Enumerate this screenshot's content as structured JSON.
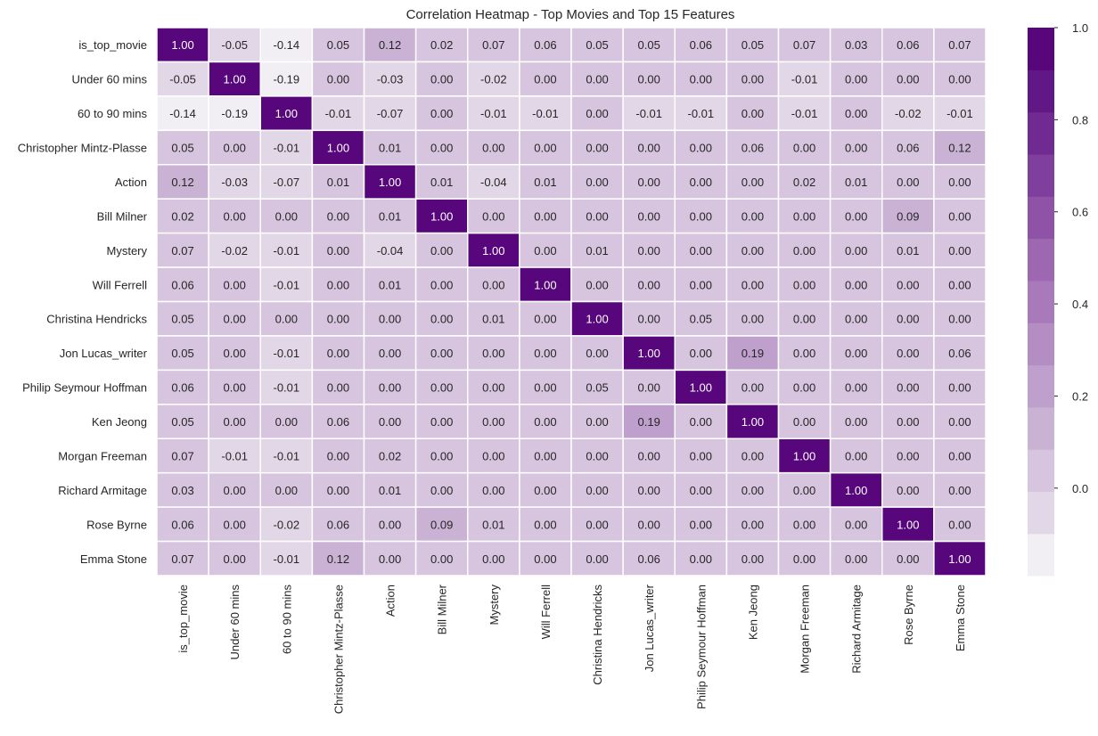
{
  "chart_data": {
    "type": "heatmap",
    "title": "Correlation Heatmap - Top Movies and Top 15 Features",
    "labels": [
      "is_top_movie",
      "Under 60 mins",
      "60 to 90 mins",
      "Christopher Mintz-Plasse",
      "Action",
      "Bill Milner",
      "Mystery",
      "Will Ferrell",
      "Christina Hendricks",
      "Jon Lucas_writer",
      "Philip Seymour Hoffman",
      "Ken Jeong",
      "Morgan Freeman",
      "Richard Armitage",
      "Rose Byrne",
      "Emma Stone"
    ],
    "matrix": [
      [
        1.0,
        -0.05,
        -0.14,
        0.05,
        0.12,
        0.02,
        0.07,
        0.06,
        0.05,
        0.05,
        0.06,
        0.05,
        0.07,
        0.03,
        0.06,
        0.07
      ],
      [
        -0.05,
        1.0,
        -0.19,
        -0.0,
        -0.03,
        -0.0,
        -0.02,
        -0.0,
        -0.0,
        -0.0,
        -0.0,
        -0.0,
        -0.01,
        0.0,
        -0.0,
        -0.0
      ],
      [
        -0.14,
        -0.19,
        1.0,
        -0.01,
        -0.07,
        -0.0,
        -0.01,
        -0.01,
        -0.0,
        -0.01,
        -0.01,
        -0.0,
        -0.01,
        -0.0,
        -0.02,
        -0.01
      ],
      [
        0.05,
        -0.0,
        -0.01,
        1.0,
        0.01,
        -0.0,
        -0.0,
        -0.0,
        -0.0,
        -0.0,
        -0.0,
        0.06,
        -0.0,
        -0.0,
        0.06,
        0.12
      ],
      [
        0.12,
        -0.03,
        -0.07,
        0.01,
        1.0,
        0.01,
        -0.04,
        0.01,
        -0.0,
        -0.0,
        0.0,
        0.0,
        0.02,
        0.01,
        0.0,
        0.0
      ],
      [
        0.02,
        -0.0,
        -0.0,
        -0.0,
        0.01,
        1.0,
        0.0,
        -0.0,
        -0.0,
        -0.0,
        -0.0,
        -0.0,
        -0.0,
        -0.0,
        0.09,
        -0.0
      ],
      [
        0.07,
        -0.02,
        -0.01,
        -0.0,
        -0.04,
        0.0,
        1.0,
        -0.0,
        0.01,
        0.0,
        0.0,
        -0.0,
        -0.0,
        -0.0,
        0.01,
        -0.0
      ],
      [
        0.06,
        -0.0,
        -0.01,
        -0.0,
        0.01,
        -0.0,
        -0.0,
        1.0,
        -0.0,
        -0.0,
        -0.0,
        -0.0,
        -0.0,
        -0.0,
        -0.0,
        -0.0
      ],
      [
        0.05,
        -0.0,
        -0.0,
        -0.0,
        -0.0,
        -0.0,
        0.01,
        -0.0,
        1.0,
        -0.0,
        0.05,
        -0.0,
        -0.0,
        -0.0,
        -0.0,
        -0.0
      ],
      [
        0.05,
        -0.0,
        -0.01,
        -0.0,
        -0.0,
        -0.0,
        0.0,
        -0.0,
        -0.0,
        1.0,
        -0.0,
        0.19,
        -0.0,
        -0.0,
        -0.0,
        0.06
      ],
      [
        0.06,
        -0.0,
        -0.01,
        -0.0,
        0.0,
        -0.0,
        0.0,
        -0.0,
        0.05,
        -0.0,
        1.0,
        -0.0,
        -0.0,
        -0.0,
        -0.0,
        -0.0
      ],
      [
        0.05,
        -0.0,
        -0.0,
        0.06,
        0.0,
        -0.0,
        -0.0,
        -0.0,
        -0.0,
        0.19,
        -0.0,
        1.0,
        -0.0,
        -0.0,
        -0.0,
        -0.0
      ],
      [
        0.07,
        -0.01,
        -0.01,
        -0.0,
        0.02,
        -0.0,
        -0.0,
        -0.0,
        -0.0,
        -0.0,
        -0.0,
        -0.0,
        1.0,
        -0.0,
        -0.0,
        -0.0
      ],
      [
        0.03,
        0.0,
        -0.0,
        -0.0,
        0.01,
        -0.0,
        -0.0,
        -0.0,
        -0.0,
        -0.0,
        -0.0,
        -0.0,
        -0.0,
        1.0,
        -0.0,
        -0.0
      ],
      [
        0.06,
        -0.0,
        -0.02,
        0.06,
        0.0,
        0.09,
        0.01,
        -0.0,
        -0.0,
        -0.0,
        -0.0,
        -0.0,
        -0.0,
        -0.0,
        1.0,
        -0.0
      ],
      [
        0.07,
        -0.0,
        -0.01,
        0.12,
        0.0,
        -0.0,
        -0.0,
        -0.0,
        -0.0,
        0.06,
        -0.0,
        -0.0,
        -0.0,
        -0.0,
        -0.0,
        1.0
      ]
    ],
    "value_format": "2 decimals",
    "vmin": -0.19,
    "vmax": 1.0,
    "colorbar_ticks": [
      0.0,
      0.2,
      0.4,
      0.6,
      0.8,
      1.0
    ],
    "colorbar_tick_labels": [
      "0.0",
      "0.2",
      "0.4",
      "0.6",
      "0.8",
      "1.0"
    ],
    "colormap": [
      "#f1eff3",
      "#e2d7e6",
      "#d7c4de",
      "#cab2d5",
      "#bfa0cc",
      "#b48dc3",
      "#a97ab9",
      "#9e68b0",
      "#8e53a6",
      "#7f3f9c",
      "#6f2b91",
      "#5f1886",
      "#57077b"
    ],
    "annotation_text_colors": {
      "light": "#262626",
      "dark": "#ffffff"
    },
    "grid_line_color": "#ffffff",
    "legend": "colorbar right",
    "grid": true
  }
}
